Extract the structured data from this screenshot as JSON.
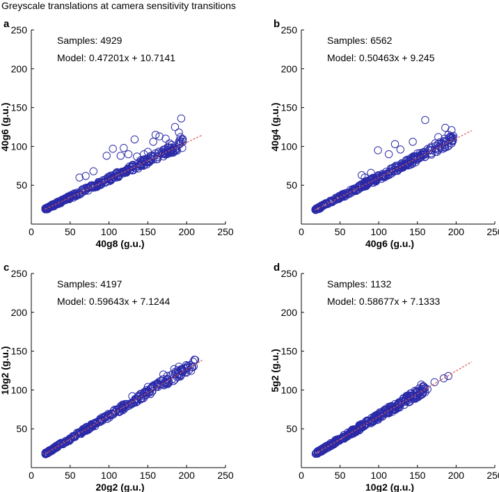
{
  "title": "Greyscale translations at camera sensitivity transitions",
  "colors": {
    "marker": "#2a2aa8",
    "fit_line": "#d9534f",
    "axis": "#000000"
  },
  "chart_data": [
    {
      "type": "scatter",
      "panel": "a",
      "xlabel": "40g8 (g.u.)",
      "ylabel": "40g6 (g.u.)",
      "xlim": [
        0,
        250
      ],
      "ylim": [
        0,
        250
      ],
      "xticks": [
        0,
        50,
        100,
        150,
        200,
        250
      ],
      "yticks": [
        50,
        100,
        150,
        200,
        250
      ],
      "samples_label": "Samples: 4929",
      "model_label": "Model: 0.47201x + 10.7141",
      "fit": {
        "slope": 0.47201,
        "intercept": 10.7141,
        "x_range": [
          18,
          220
        ]
      },
      "x_range": [
        18,
        195
      ],
      "outliers": [
        [
          193,
          136
        ],
        [
          185,
          125
        ],
        [
          160,
          115
        ],
        [
          165,
          113
        ],
        [
          173,
          110
        ],
        [
          133,
          109
        ],
        [
          157,
          106
        ],
        [
          105,
          97
        ],
        [
          119,
          98
        ],
        [
          125,
          90
        ],
        [
          97,
          88
        ],
        [
          115,
          88
        ],
        [
          136,
          87
        ],
        [
          145,
          90
        ],
        [
          190,
          118
        ],
        [
          192,
          112
        ],
        [
          178,
          104
        ],
        [
          190,
          105
        ],
        [
          150,
          93
        ],
        [
          62,
          60
        ],
        [
          70,
          62
        ],
        [
          80,
          68
        ]
      ]
    },
    {
      "type": "scatter",
      "panel": "b",
      "xlabel": "40g6 (g.u.)",
      "ylabel": "40g4 (g.u.)",
      "xlim": [
        0,
        250
      ],
      "ylim": [
        0,
        250
      ],
      "xticks": [
        0,
        50,
        100,
        150,
        200,
        250
      ],
      "yticks": [
        50,
        100,
        150,
        200,
        250
      ],
      "samples_label": "Samples: 6562",
      "model_label": "Model: 0.50463x + 9.245",
      "fit": {
        "slope": 0.50463,
        "intercept": 9.245,
        "x_range": [
          18,
          220
        ]
      },
      "x_range": [
        18,
        197
      ],
      "outliers": [
        [
          160,
          134
        ],
        [
          186,
          124
        ],
        [
          194,
          121
        ],
        [
          144,
          106
        ],
        [
          121,
          103
        ],
        [
          128,
          96
        ],
        [
          99,
          95
        ],
        [
          150,
          91
        ],
        [
          185,
          110
        ],
        [
          190,
          115
        ],
        [
          173,
          104
        ],
        [
          177,
          112
        ],
        [
          195,
          108
        ],
        [
          113,
          90
        ],
        [
          78,
          63
        ],
        [
          90,
          66
        ],
        [
          82,
          60
        ]
      ]
    },
    {
      "type": "scatter",
      "panel": "c",
      "xlabel": "20g2 (g.u.)",
      "ylabel": "10g2 (g.u.)",
      "xlim": [
        0,
        250
      ],
      "ylim": [
        0,
        250
      ],
      "xticks": [
        0,
        50,
        100,
        150,
        200,
        250
      ],
      "yticks": [
        50,
        100,
        150,
        200,
        250
      ],
      "samples_label": "Samples: 4197",
      "model_label": "Model: 0.59643x + 7.1244",
      "fit": {
        "slope": 0.59643,
        "intercept": 7.1244,
        "x_range": [
          18,
          220
        ]
      },
      "x_range": [
        18,
        212
      ],
      "outliers": [
        [
          210,
          139
        ],
        [
          205,
          132
        ],
        [
          190,
          130
        ],
        [
          170,
          120
        ],
        [
          184,
          127
        ],
        [
          195,
          126
        ],
        [
          150,
          104
        ],
        [
          130,
          92
        ],
        [
          175,
          118
        ]
      ]
    },
    {
      "type": "scatter",
      "panel": "d",
      "xlabel": "10g2 (g.u.)",
      "ylabel": "5g2 (g.u.)",
      "xlim": [
        0,
        250
      ],
      "ylim": [
        0,
        250
      ],
      "xticks": [
        0,
        50,
        100,
        150,
        200,
        250
      ],
      "yticks": [
        50,
        100,
        150,
        200,
        250
      ],
      "samples_label": "Samples: 1132",
      "model_label": "Model: 0.58677x + 7.1333",
      "fit": {
        "slope": 0.58677,
        "intercept": 7.1333,
        "x_range": [
          18,
          220
        ]
      },
      "x_range": [
        18,
        160
      ],
      "outliers": [
        [
          155,
          107
        ],
        [
          190,
          118
        ],
        [
          184,
          115
        ],
        [
          172,
          110
        ],
        [
          163,
          101
        ],
        [
          140,
          90
        ]
      ]
    }
  ]
}
